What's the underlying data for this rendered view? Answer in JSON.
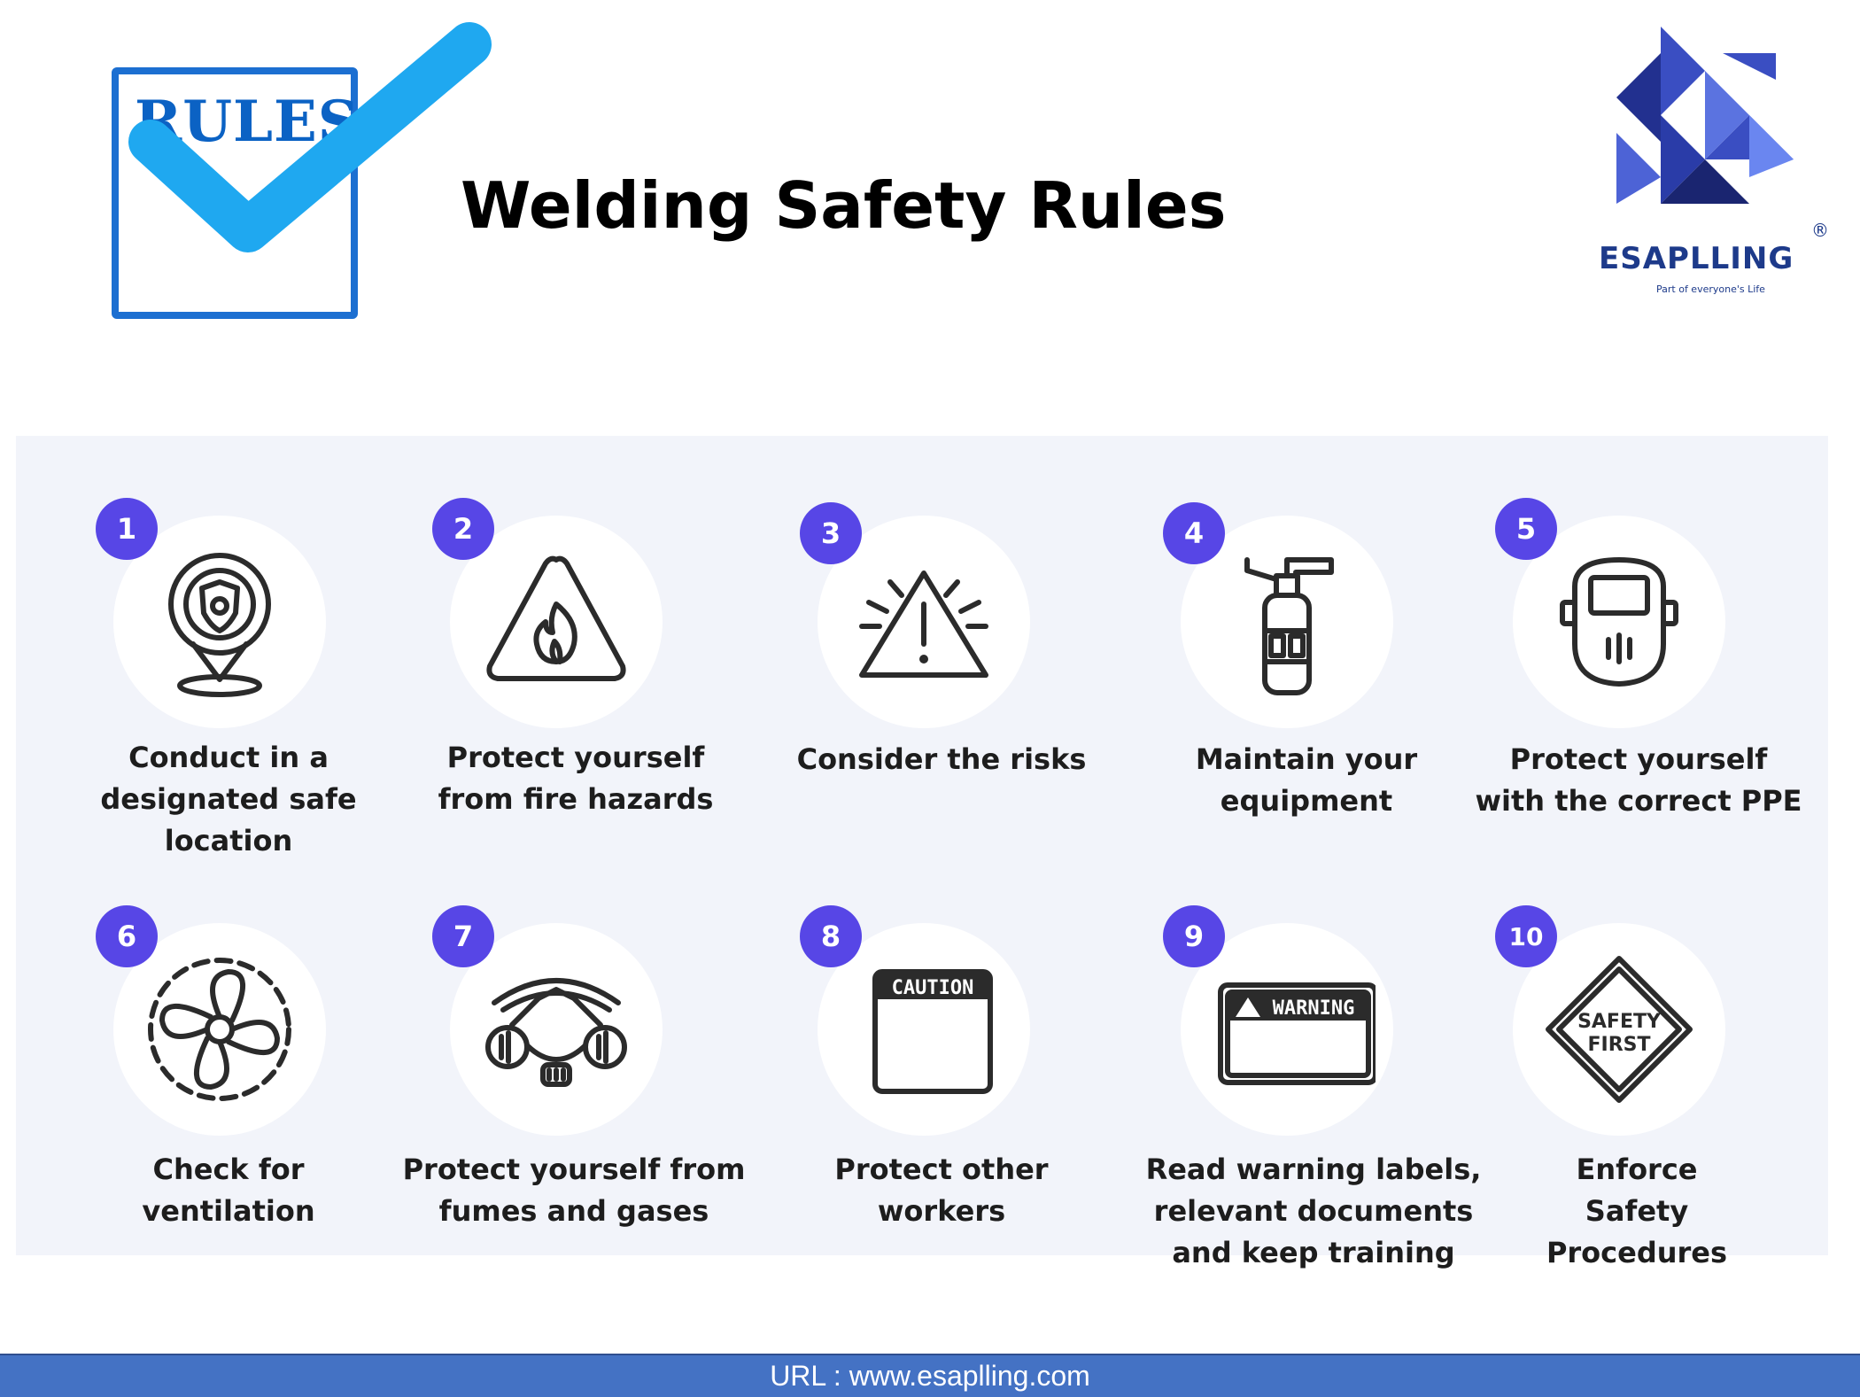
{
  "header": {
    "logo_word": "RULES",
    "title": "Welding Safety Rules"
  },
  "brand": {
    "name": "ESAPLLING",
    "registered": "®",
    "tagline": "Part of everyone's Life"
  },
  "colors": {
    "number_badge": "#5746e6",
    "panel_bg": "#f2f4fa",
    "footer_bg": "#4472c4",
    "rules_blue": "#1c6fd1",
    "check_cyan": "#1fa8f0",
    "brand_navy": "#1d3a8a"
  },
  "rules": [
    {
      "number": "1",
      "icon": "location-shield-icon",
      "label_lines": [
        "Conduct in a",
        "designated safe",
        "location"
      ]
    },
    {
      "number": "2",
      "icon": "fire-warning-icon",
      "label_lines": [
        "Protect yourself",
        "from fire hazards"
      ]
    },
    {
      "number": "3",
      "icon": "alert-triangle-icon",
      "label_lines": [
        "Consider the risks"
      ]
    },
    {
      "number": "4",
      "icon": "fire-extinguisher-icon",
      "label_lines": [
        "Maintain your",
        "equipment"
      ]
    },
    {
      "number": "5",
      "icon": "welding-helmet-icon",
      "label_lines": [
        "Protect yourself",
        "with the correct PPE"
      ]
    },
    {
      "number": "6",
      "icon": "ventilation-fan-icon",
      "label_lines": [
        "Check for",
        "ventilation"
      ]
    },
    {
      "number": "7",
      "icon": "respirator-mask-icon",
      "label_lines": [
        "Protect yourself from",
        "fumes and gases"
      ]
    },
    {
      "number": "8",
      "icon": "caution-sign-icon",
      "icon_text": "CAUTION",
      "label_lines": [
        "Protect other",
        "workers"
      ]
    },
    {
      "number": "9",
      "icon": "warning-sign-icon",
      "icon_text": "WARNING",
      "label_lines": [
        "Read warning labels,",
        "relevant documents",
        "and keep training"
      ]
    },
    {
      "number": "10",
      "icon": "safety-first-sign-icon",
      "icon_text_lines": [
        "SAFETY",
        "FIRST"
      ],
      "label_lines": [
        "Enforce",
        "Safety",
        "Procedures"
      ]
    }
  ],
  "footer": {
    "url_text": "URL : www.esaplling.com"
  }
}
